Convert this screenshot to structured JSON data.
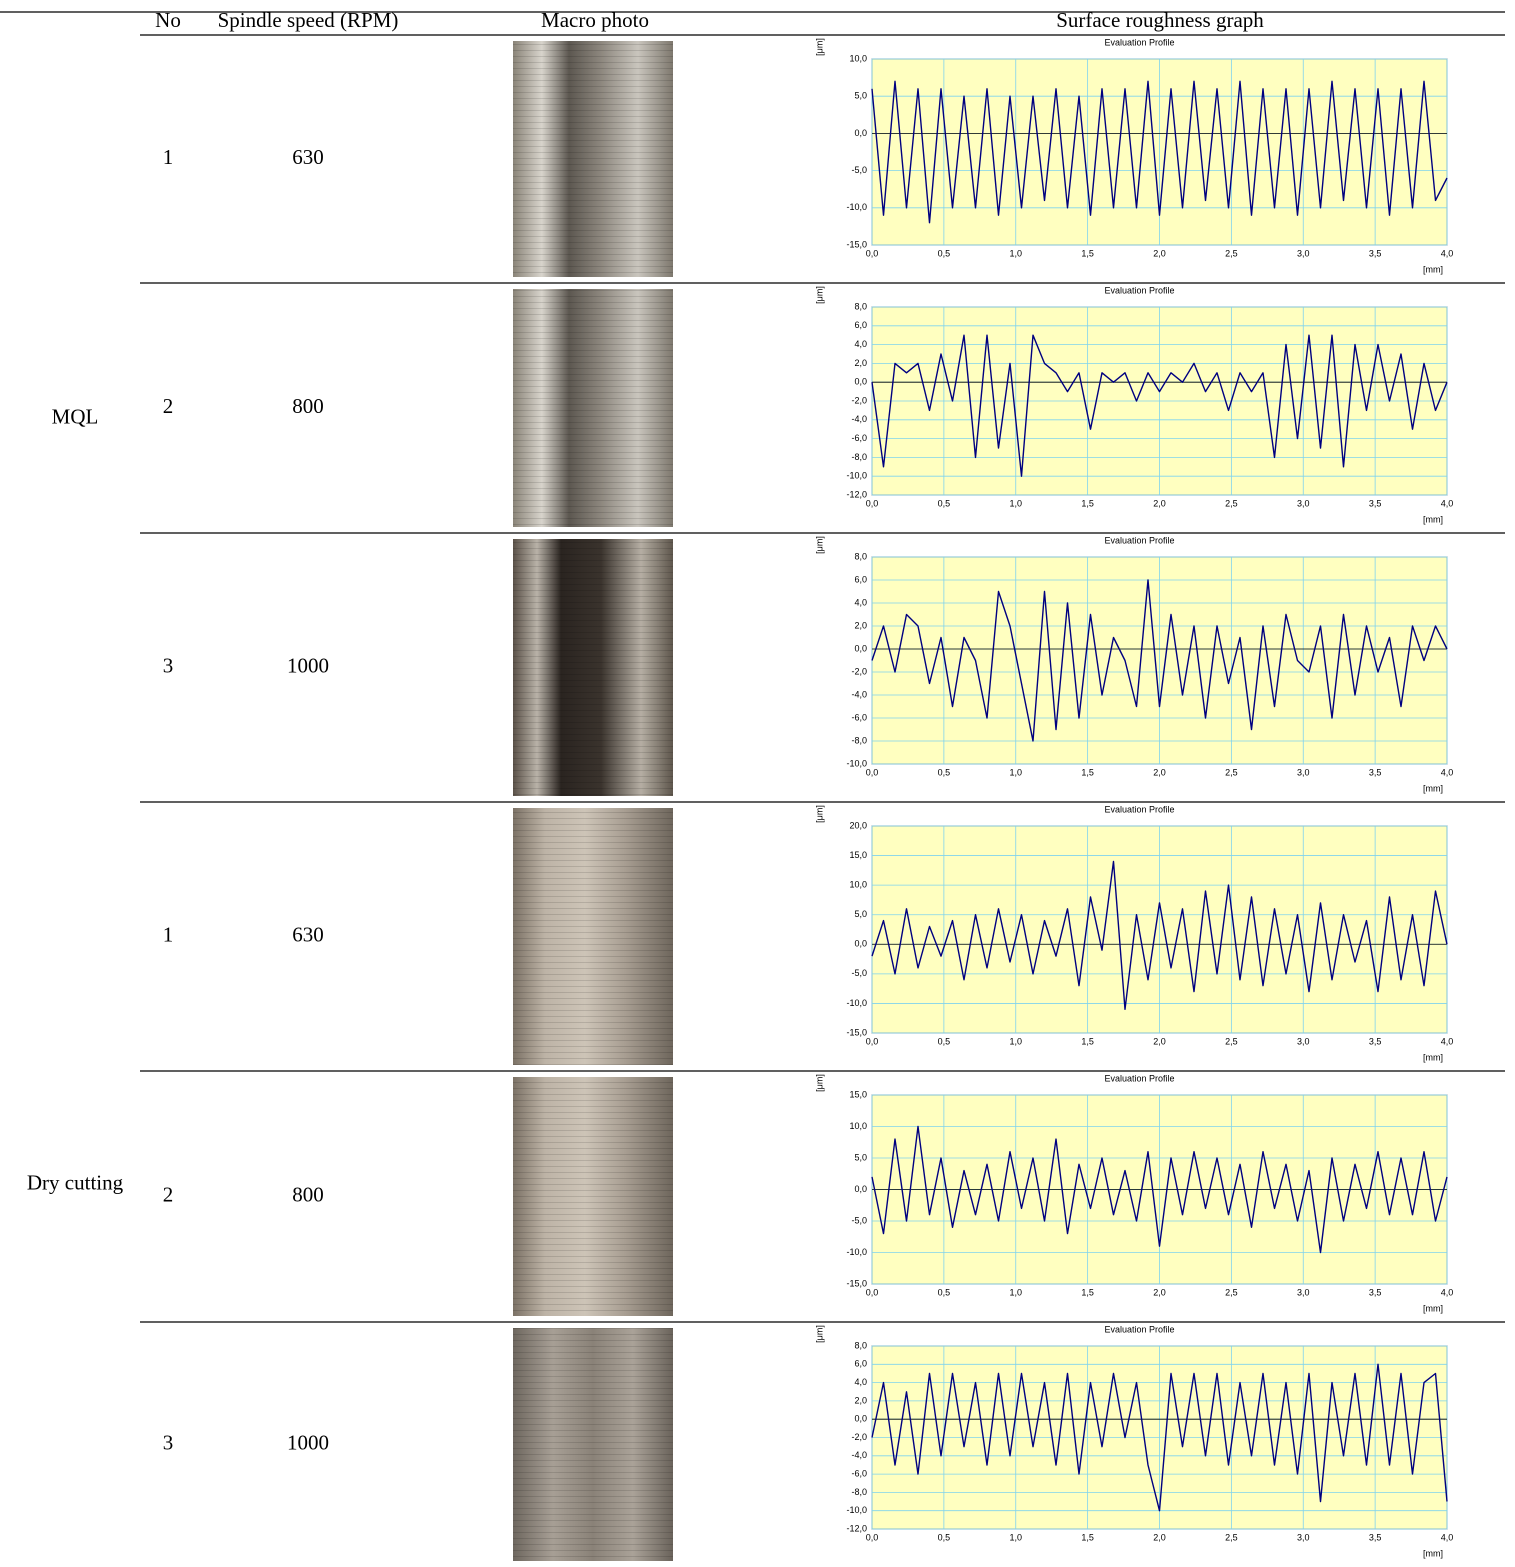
{
  "table": {
    "header": [
      "No",
      "Spindle speed (RPM)",
      "Macro photo",
      "Surface roughness graph"
    ],
    "groups": [
      {
        "label": "MQL",
        "rows": [
          {
            "no": 1,
            "speed": 630
          },
          {
            "no": 2,
            "speed": 800
          },
          {
            "no": 3,
            "speed": 1000
          }
        ]
      },
      {
        "label": "Dry cutting",
        "rows": [
          {
            "no": 1,
            "speed": 630
          },
          {
            "no": 2,
            "speed": 800
          },
          {
            "no": 3,
            "speed": 1000
          }
        ]
      }
    ]
  },
  "chart_data": [
    {
      "type": "line",
      "title": "Evaluation Profile",
      "y_label": "[μm]",
      "x_label": "[mm]",
      "color": "#000080",
      "background": "#ffffc0",
      "grid": true,
      "x": [
        0,
        0.08,
        0.16,
        0.24,
        0.32,
        0.4,
        0.48,
        0.56,
        0.64,
        0.72,
        0.8,
        0.88,
        0.96,
        1.04,
        1.12,
        1.2,
        1.28,
        1.36,
        1.44,
        1.52,
        1.6,
        1.68,
        1.76,
        1.84,
        1.92,
        2,
        2.08,
        2.16,
        2.24,
        2.32,
        2.4,
        2.48,
        2.56,
        2.64,
        2.72,
        2.8,
        2.88,
        2.96,
        3.04,
        3.12,
        3.2,
        3.28,
        3.36,
        3.44,
        3.52,
        3.6,
        3.68,
        3.76,
        3.84,
        3.92,
        4
      ],
      "values": [
        6,
        -11,
        7,
        -10,
        6,
        -12,
        6,
        -10,
        5,
        -10,
        6,
        -11,
        5,
        -10,
        5,
        -9,
        6,
        -10,
        5,
        -11,
        6,
        -10,
        6,
        -10,
        7,
        -11,
        6,
        -10,
        7,
        -9,
        6,
        -10,
        7,
        -11,
        6,
        -10,
        6,
        -11,
        6,
        -10,
        7,
        -9,
        6,
        -10,
        6,
        -11,
        6,
        -10,
        7,
        -9,
        -6
      ],
      "xlim": [
        0,
        4
      ],
      "ylim": [
        -15,
        10
      ],
      "xticks": [
        {
          "value": 0,
          "label": "0,0"
        },
        {
          "value": 0.5,
          "label": "0,5"
        },
        {
          "value": 1,
          "label": "1,0"
        },
        {
          "value": 1.5,
          "label": "1,5"
        },
        {
          "value": 2,
          "label": "2,0"
        },
        {
          "value": 2.5,
          "label": "2,5"
        },
        {
          "value": 3,
          "label": "3,0"
        },
        {
          "value": 3.5,
          "label": "3,5"
        },
        {
          "value": 4,
          "label": "4,0"
        }
      ],
      "yticks": [
        {
          "value": -15,
          "label": "-15,0"
        },
        {
          "value": -10,
          "label": "-10,0"
        },
        {
          "value": -5,
          "label": "-5,0"
        },
        {
          "value": 0,
          "label": "0,0"
        },
        {
          "value": 5,
          "label": "5,0"
        },
        {
          "value": 10,
          "label": "10,0"
        }
      ]
    },
    {
      "type": "line",
      "title": "Evaluation Profile",
      "y_label": "[μm]",
      "x_label": "[mm]",
      "color": "#000080",
      "background": "#ffffc0",
      "grid": true,
      "x": [
        0,
        0.08,
        0.16,
        0.24,
        0.32,
        0.4,
        0.48,
        0.56,
        0.64,
        0.72,
        0.8,
        0.88,
        0.96,
        1.04,
        1.12,
        1.2,
        1.28,
        1.36,
        1.44,
        1.52,
        1.6,
        1.68,
        1.76,
        1.84,
        1.92,
        2,
        2.08,
        2.16,
        2.24,
        2.32,
        2.4,
        2.48,
        2.56,
        2.64,
        2.72,
        2.8,
        2.88,
        2.96,
        3.04,
        3.12,
        3.2,
        3.28,
        3.36,
        3.44,
        3.52,
        3.6,
        3.68,
        3.76,
        3.84,
        3.92,
        4
      ],
      "values": [
        0,
        -9,
        2,
        1,
        2,
        -3,
        3,
        -2,
        5,
        -8,
        5,
        -7,
        2,
        -10,
        5,
        2,
        1,
        -1,
        1,
        -5,
        1,
        0,
        1,
        -2,
        1,
        -1,
        1,
        0,
        2,
        -1,
        1,
        -3,
        1,
        -1,
        1,
        -8,
        4,
        -6,
        5,
        -7,
        5,
        -9,
        4,
        -3,
        4,
        -2,
        3,
        -5,
        2,
        -3,
        0
      ],
      "xlim": [
        0,
        4
      ],
      "ylim": [
        -12,
        8
      ],
      "xticks": [
        {
          "value": 0,
          "label": "0,0"
        },
        {
          "value": 0.5,
          "label": "0,5"
        },
        {
          "value": 1,
          "label": "1,0"
        },
        {
          "value": 1.5,
          "label": "1,5"
        },
        {
          "value": 2,
          "label": "2,0"
        },
        {
          "value": 2.5,
          "label": "2,5"
        },
        {
          "value": 3,
          "label": "3,0"
        },
        {
          "value": 3.5,
          "label": "3,5"
        },
        {
          "value": 4,
          "label": "4,0"
        }
      ],
      "yticks": [
        {
          "value": -12,
          "label": "-12,0"
        },
        {
          "value": -10,
          "label": "-10,0"
        },
        {
          "value": -8,
          "label": "-8,0"
        },
        {
          "value": -6,
          "label": "-6,0"
        },
        {
          "value": -4,
          "label": "-4,0"
        },
        {
          "value": -2,
          "label": "-2,0"
        },
        {
          "value": 0,
          "label": "0,0"
        },
        {
          "value": 2,
          "label": "2,0"
        },
        {
          "value": 4,
          "label": "4,0"
        },
        {
          "value": 6,
          "label": "6,0"
        },
        {
          "value": 8,
          "label": "8,0"
        }
      ]
    },
    {
      "type": "line",
      "title": "Evaluation Profile",
      "y_label": "[μm]",
      "x_label": "[mm]",
      "color": "#000080",
      "background": "#ffffc0",
      "grid": true,
      "x": [
        0,
        0.08,
        0.16,
        0.24,
        0.32,
        0.4,
        0.48,
        0.56,
        0.64,
        0.72,
        0.8,
        0.88,
        0.96,
        1.04,
        1.12,
        1.2,
        1.28,
        1.36,
        1.44,
        1.52,
        1.6,
        1.68,
        1.76,
        1.84,
        1.92,
        2,
        2.08,
        2.16,
        2.24,
        2.32,
        2.4,
        2.48,
        2.56,
        2.64,
        2.72,
        2.8,
        2.88,
        2.96,
        3.04,
        3.12,
        3.2,
        3.28,
        3.36,
        3.44,
        3.52,
        3.6,
        3.68,
        3.76,
        3.84,
        3.92,
        4
      ],
      "values": [
        -1,
        2,
        -2,
        3,
        2,
        -3,
        1,
        -5,
        1,
        -1,
        -6,
        5,
        2,
        -3,
        -8,
        5,
        -7,
        4,
        -6,
        3,
        -4,
        1,
        -1,
        -5,
        6,
        -5,
        3,
        -4,
        2,
        -6,
        2,
        -3,
        1,
        -7,
        2,
        -5,
        3,
        -1,
        -2,
        2,
        -6,
        3,
        -4,
        2,
        -2,
        1,
        -5,
        2,
        -1,
        2,
        0
      ],
      "xlim": [
        0,
        4
      ],
      "ylim": [
        -10,
        8
      ],
      "xticks": [
        {
          "value": 0,
          "label": "0,0"
        },
        {
          "value": 0.5,
          "label": "0,5"
        },
        {
          "value": 1,
          "label": "1,0"
        },
        {
          "value": 1.5,
          "label": "1,5"
        },
        {
          "value": 2,
          "label": "2,0"
        },
        {
          "value": 2.5,
          "label": "2,5"
        },
        {
          "value": 3,
          "label": "3,0"
        },
        {
          "value": 3.5,
          "label": "3,5"
        },
        {
          "value": 4,
          "label": "4,0"
        }
      ],
      "yticks": [
        {
          "value": -10,
          "label": "-10,0"
        },
        {
          "value": -8,
          "label": "-8,0"
        },
        {
          "value": -6,
          "label": "-6,0"
        },
        {
          "value": -4,
          "label": "-4,0"
        },
        {
          "value": -2,
          "label": "-2,0"
        },
        {
          "value": 0,
          "label": "0,0"
        },
        {
          "value": 2,
          "label": "2,0"
        },
        {
          "value": 4,
          "label": "4,0"
        },
        {
          "value": 6,
          "label": "6,0"
        },
        {
          "value": 8,
          "label": "8,0"
        }
      ]
    },
    {
      "type": "line",
      "title": "Evaluation Profile",
      "y_label": "[μm]",
      "x_label": "[mm]",
      "color": "#000080",
      "background": "#ffffc0",
      "grid": true,
      "x": [
        0,
        0.08,
        0.16,
        0.24,
        0.32,
        0.4,
        0.48,
        0.56,
        0.64,
        0.72,
        0.8,
        0.88,
        0.96,
        1.04,
        1.12,
        1.2,
        1.28,
        1.36,
        1.44,
        1.52,
        1.6,
        1.68,
        1.76,
        1.84,
        1.92,
        2,
        2.08,
        2.16,
        2.24,
        2.32,
        2.4,
        2.48,
        2.56,
        2.64,
        2.72,
        2.8,
        2.88,
        2.96,
        3.04,
        3.12,
        3.2,
        3.28,
        3.36,
        3.44,
        3.52,
        3.6,
        3.68,
        3.76,
        3.84,
        3.92,
        4
      ],
      "values": [
        -2,
        4,
        -5,
        6,
        -4,
        3,
        -2,
        4,
        -6,
        5,
        -4,
        6,
        -3,
        5,
        -5,
        4,
        -2,
        6,
        -7,
        8,
        -1,
        14,
        -11,
        5,
        -6,
        7,
        -4,
        6,
        -8,
        9,
        -5,
        10,
        -6,
        8,
        -7,
        6,
        -5,
        5,
        -8,
        7,
        -6,
        5,
        -3,
        4,
        -8,
        8,
        -6,
        5,
        -7,
        9,
        0
      ],
      "xlim": [
        0,
        4
      ],
      "ylim": [
        -15,
        20
      ],
      "xticks": [
        {
          "value": 0,
          "label": "0,0"
        },
        {
          "value": 0.5,
          "label": "0,5"
        },
        {
          "value": 1,
          "label": "1,0"
        },
        {
          "value": 1.5,
          "label": "1,5"
        },
        {
          "value": 2,
          "label": "2,0"
        },
        {
          "value": 2.5,
          "label": "2,5"
        },
        {
          "value": 3,
          "label": "3,0"
        },
        {
          "value": 3.5,
          "label": "3,5"
        },
        {
          "value": 4,
          "label": "4,0"
        }
      ],
      "yticks": [
        {
          "value": -15,
          "label": "-15,0"
        },
        {
          "value": -10,
          "label": "-10,0"
        },
        {
          "value": -5,
          "label": "-5,0"
        },
        {
          "value": 0,
          "label": "0,0"
        },
        {
          "value": 5,
          "label": "5,0"
        },
        {
          "value": 10,
          "label": "10,0"
        },
        {
          "value": 15,
          "label": "15,0"
        },
        {
          "value": 20,
          "label": "20,0"
        }
      ]
    },
    {
      "type": "line",
      "title": "Evaluation Profile",
      "y_label": "[μm]",
      "x_label": "[mm]",
      "color": "#000080",
      "background": "#ffffc0",
      "grid": true,
      "x": [
        0,
        0.08,
        0.16,
        0.24,
        0.32,
        0.4,
        0.48,
        0.56,
        0.64,
        0.72,
        0.8,
        0.88,
        0.96,
        1.04,
        1.12,
        1.2,
        1.28,
        1.36,
        1.44,
        1.52,
        1.6,
        1.68,
        1.76,
        1.84,
        1.92,
        2,
        2.08,
        2.16,
        2.24,
        2.32,
        2.4,
        2.48,
        2.56,
        2.64,
        2.72,
        2.8,
        2.88,
        2.96,
        3.04,
        3.12,
        3.2,
        3.28,
        3.36,
        3.44,
        3.52,
        3.6,
        3.68,
        3.76,
        3.84,
        3.92,
        4
      ],
      "values": [
        2,
        -7,
        8,
        -5,
        10,
        -4,
        5,
        -6,
        3,
        -4,
        4,
        -5,
        6,
        -3,
        5,
        -5,
        8,
        -7,
        4,
        -3,
        5,
        -4,
        3,
        -5,
        6,
        -9,
        5,
        -4,
        6,
        -3,
        5,
        -4,
        4,
        -6,
        6,
        -3,
        4,
        -5,
        3,
        -10,
        5,
        -5,
        4,
        -3,
        6,
        -4,
        5,
        -4,
        6,
        -5,
        2
      ],
      "xlim": [
        0,
        4
      ],
      "ylim": [
        -15,
        15
      ],
      "xticks": [
        {
          "value": 0,
          "label": "0,0"
        },
        {
          "value": 0.5,
          "label": "0,5"
        },
        {
          "value": 1,
          "label": "1,0"
        },
        {
          "value": 1.5,
          "label": "1,5"
        },
        {
          "value": 2,
          "label": "2,0"
        },
        {
          "value": 2.5,
          "label": "2,5"
        },
        {
          "value": 3,
          "label": "3,0"
        },
        {
          "value": 3.5,
          "label": "3,5"
        },
        {
          "value": 4,
          "label": "4,0"
        }
      ],
      "yticks": [
        {
          "value": -15,
          "label": "-15,0"
        },
        {
          "value": -10,
          "label": "-10,0"
        },
        {
          "value": -5,
          "label": "-5,0"
        },
        {
          "value": 0,
          "label": "0,0"
        },
        {
          "value": 5,
          "label": "5,0"
        },
        {
          "value": 10,
          "label": "10,0"
        },
        {
          "value": 15,
          "label": "15,0"
        }
      ]
    },
    {
      "type": "line",
      "title": "Evaluation Profile",
      "y_label": "[μm]",
      "x_label": "[mm]",
      "color": "#000080",
      "background": "#ffffc0",
      "grid": true,
      "x": [
        0,
        0.08,
        0.16,
        0.24,
        0.32,
        0.4,
        0.48,
        0.56,
        0.64,
        0.72,
        0.8,
        0.88,
        0.96,
        1.04,
        1.12,
        1.2,
        1.28,
        1.36,
        1.44,
        1.52,
        1.6,
        1.68,
        1.76,
        1.84,
        1.92,
        2,
        2.08,
        2.16,
        2.24,
        2.32,
        2.4,
        2.48,
        2.56,
        2.64,
        2.72,
        2.8,
        2.88,
        2.96,
        3.04,
        3.12,
        3.2,
        3.28,
        3.36,
        3.44,
        3.52,
        3.6,
        3.68,
        3.76,
        3.84,
        3.92,
        4
      ],
      "values": [
        -2,
        4,
        -5,
        3,
        -6,
        5,
        -4,
        5,
        -3,
        4,
        -5,
        5,
        -4,
        5,
        -3,
        4,
        -5,
        5,
        -6,
        4,
        -3,
        5,
        -2,
        4,
        -5,
        -10,
        5,
        -3,
        5,
        -4,
        5,
        -5,
        4,
        -4,
        5,
        -5,
        4,
        -6,
        5,
        -9,
        4,
        -4,
        5,
        -5,
        6,
        -5,
        5,
        -6,
        4,
        5,
        -9
      ],
      "xlim": [
        0,
        4
      ],
      "ylim": [
        -12,
        8
      ],
      "xticks": [
        {
          "value": 0,
          "label": "0,0"
        },
        {
          "value": 0.5,
          "label": "0,5"
        },
        {
          "value": 1,
          "label": "1,0"
        },
        {
          "value": 1.5,
          "label": "1,5"
        },
        {
          "value": 2,
          "label": "2,0"
        },
        {
          "value": 2.5,
          "label": "2,5"
        },
        {
          "value": 3,
          "label": "3,0"
        },
        {
          "value": 3.5,
          "label": "3,5"
        },
        {
          "value": 4,
          "label": "4,0"
        }
      ],
      "yticks": [
        {
          "value": -12,
          "label": "-12,0"
        },
        {
          "value": -10,
          "label": "-10,0"
        },
        {
          "value": -8,
          "label": "-8,0"
        },
        {
          "value": -6,
          "label": "-6,0"
        },
        {
          "value": -4,
          "label": "-4,0"
        },
        {
          "value": -2,
          "label": "-2,0"
        },
        {
          "value": 0,
          "label": "0,0"
        },
        {
          "value": 2,
          "label": "2,0"
        },
        {
          "value": 4,
          "label": "4,0"
        },
        {
          "value": 6,
          "label": "6,0"
        },
        {
          "value": 8,
          "label": "8,0"
        }
      ]
    }
  ]
}
